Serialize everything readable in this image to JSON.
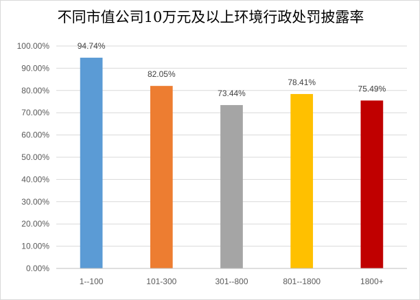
{
  "chart_data": {
    "type": "bar",
    "title": "不同市值公司10万元及以上环境行政处罚披露率",
    "xlabel": "",
    "ylabel": "",
    "categories": [
      "1--100",
      "101-300",
      "301--800",
      "801--1800",
      "1800+"
    ],
    "values": [
      94.74,
      82.05,
      73.44,
      78.41,
      75.49
    ],
    "value_labels": [
      "94.74%",
      "82.05%",
      "73.44%",
      "78.41%",
      "75.49%"
    ],
    "colors": [
      "#5B9BD5",
      "#ED7D31",
      "#A5A5A5",
      "#FFC000",
      "#C00000"
    ],
    "ylim": [
      0,
      100
    ],
    "yticks": [
      "0.00%",
      "10.00%",
      "20.00%",
      "30.00%",
      "40.00%",
      "50.00%",
      "60.00%",
      "70.00%",
      "80.00%",
      "90.00%",
      "100.00%"
    ],
    "grid": true,
    "legend": "none"
  }
}
